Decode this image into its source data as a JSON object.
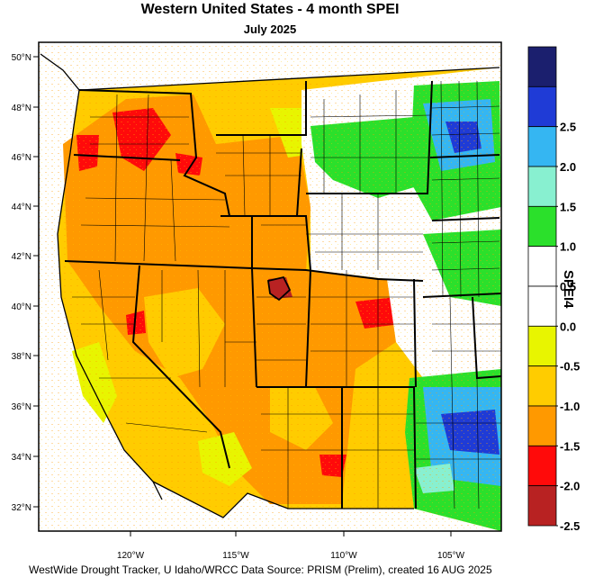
{
  "title": "Western United States - 4 month SPEI",
  "subtitle": "July 2025",
  "footer": "WestWide Drought Tracker, U Idaho/WRCC Data Source: PRISM (Prelim), created 16 AUG 2025",
  "colorbar": {
    "label": "SPEI4",
    "bins": [
      {
        "color": "#1b1f6e"
      },
      {
        "color": "#1f3bd6",
        "label": "2.5"
      },
      {
        "color": "#35b6f2",
        "label": "2.0"
      },
      {
        "color": "#88f0d0",
        "label": "1.5"
      },
      {
        "color": "#2be02b",
        "label": "1.0"
      },
      {
        "color": "#ffffff",
        "label": "0.5"
      },
      {
        "color": "#ffffff",
        "label": "0.0"
      },
      {
        "color": "#e8f500",
        "label": "-0.5"
      },
      {
        "color": "#ffcc00",
        "label": "-1.0"
      },
      {
        "color": "#ff9900",
        "label": "-1.5"
      },
      {
        "color": "#ff0a0a",
        "label": "-2.0"
      },
      {
        "color": "#b82222",
        "label": "-2.5"
      }
    ]
  },
  "lat_labels": [
    "50°N",
    "48°N",
    "46°N",
    "44°N",
    "42°N",
    "40°N",
    "38°N",
    "36°N",
    "34°N",
    "32°N"
  ],
  "lon_labels": [
    "120°W",
    "115°W",
    "110°W",
    "105°W"
  ]
}
